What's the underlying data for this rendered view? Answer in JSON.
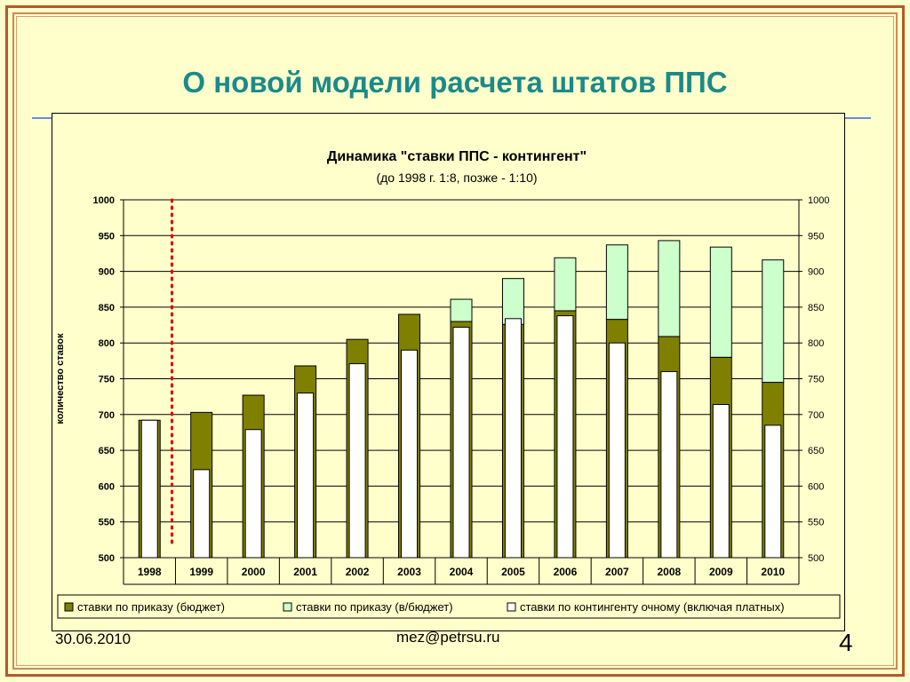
{
  "slide": {
    "title": "О новой модели расчета штатов ППС",
    "date": "30.06.2010",
    "email": "mez@petrsu.ru",
    "page": "4"
  },
  "colors": {
    "budget": "#808000",
    "nonbudget": "#ccffcc",
    "contingent": "#ffffff",
    "divider": "#e00000",
    "title": "#1a8a8a"
  },
  "chart_data": {
    "type": "bar",
    "title": "Динамика \"ставки ППС - контингент\"",
    "subtitle": "(до 1998 г. 1:8, позже - 1:10)",
    "ylabel": "количество ставок",
    "xlabel": "",
    "ylim": [
      500,
      1000
    ],
    "yticks": [
      500,
      550,
      600,
      650,
      700,
      750,
      800,
      850,
      900,
      950,
      1000
    ],
    "grid": true,
    "legend_position": "bottom",
    "categories": [
      "1998",
      "1999",
      "2000",
      "2001",
      "2002",
      "2003",
      "2004",
      "2005",
      "2006",
      "2007",
      "2008",
      "2009",
      "2010"
    ],
    "series": [
      {
        "name": "ставки по приказу (бюджет)",
        "values": [
          692,
          703,
          727,
          768,
          805,
          840,
          830,
          826,
          845,
          833,
          809,
          780,
          745
        ]
      },
      {
        "name": "ставки по приказу (в/бюджет)",
        "values": [
          0,
          0,
          0,
          0,
          0,
          0,
          31,
          64,
          74,
          104,
          134,
          154,
          171
        ]
      },
      {
        "name": "ставки по контингенту очному (включая платных)",
        "values": [
          692,
          623,
          679,
          730,
          771,
          790,
          822,
          834,
          838,
          800,
          760,
          714,
          685
        ]
      }
    ],
    "annotations": [
      {
        "type": "vertical-dotted-line",
        "between": [
          "1998",
          "1999"
        ]
      }
    ]
  }
}
